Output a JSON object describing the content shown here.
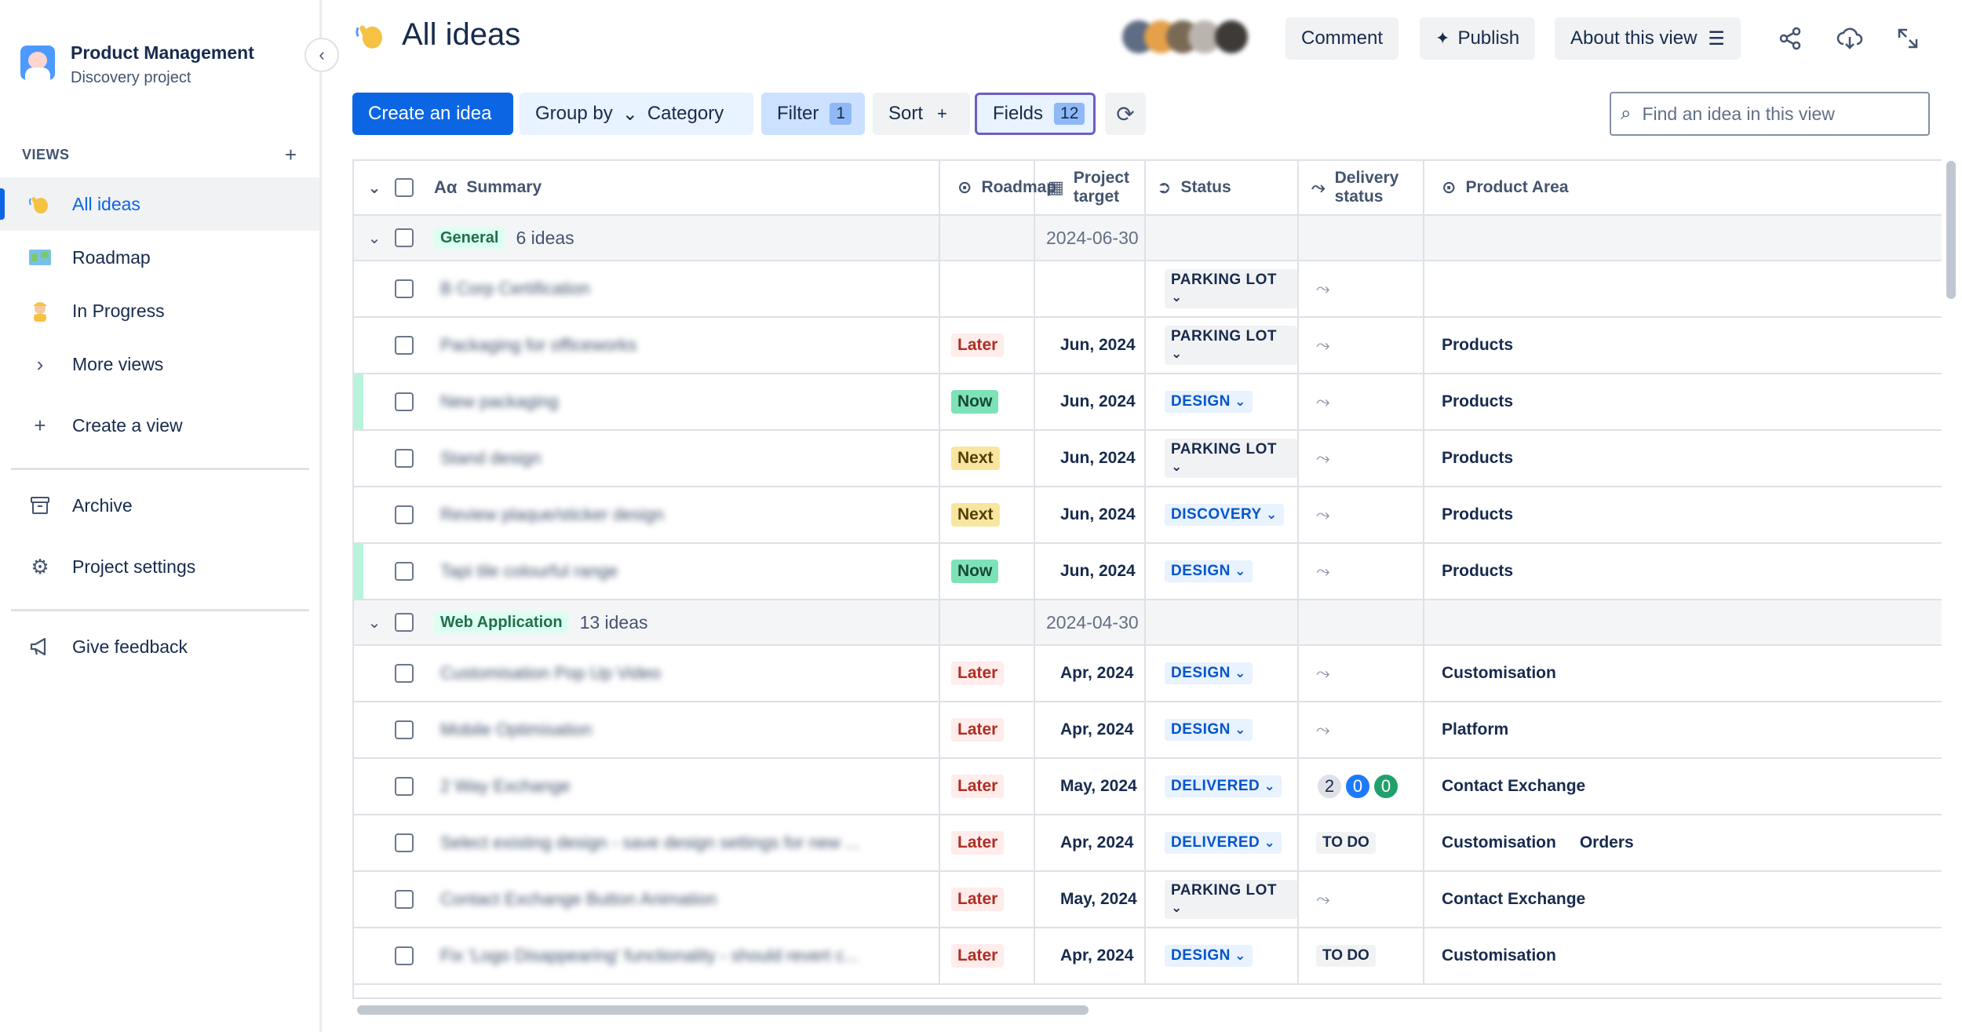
{
  "sidebar": {
    "project_name": "Product Management",
    "project_type": "Discovery project",
    "views_heading": "VIEWS",
    "items": [
      {
        "label": "All ideas",
        "icon": "waving-hand-icon"
      },
      {
        "label": "Roadmap",
        "icon": "map-icon"
      },
      {
        "label": "In Progress",
        "icon": "worker-icon"
      },
      {
        "label": "More views",
        "icon": "chevron-right-icon"
      },
      {
        "label": "Create a view",
        "icon": "plus-icon"
      },
      {
        "label": "Archive",
        "icon": "archive-icon"
      },
      {
        "label": "Project settings",
        "icon": "gear-icon"
      },
      {
        "label": "Give feedback",
        "icon": "megaphone-icon"
      }
    ]
  },
  "header": {
    "title": "All ideas",
    "comment_label": "Comment",
    "publish_label": "Publish",
    "about_label": "About this view"
  },
  "toolbar": {
    "create_label": "Create an idea",
    "group_by_label": "Group by",
    "group_by_value": "Category",
    "filter_label": "Filter",
    "filter_count": "1",
    "sort_label": "Sort",
    "fields_label": "Fields",
    "fields_count": "12"
  },
  "search": {
    "placeholder": "Find an idea in this view"
  },
  "table": {
    "columns": [
      "Summary",
      "Roadmap",
      "Project target",
      "Status",
      "Delivery status",
      "Product Area"
    ],
    "groups": [
      {
        "label": "General",
        "count": "6 ideas",
        "range": "2024-06-30 - ...",
        "rows": [
          {
            "summary": "B Corp Certification",
            "roadmap": "",
            "target": "",
            "status": "PARKING LOT",
            "delivery": "",
            "areas": [
              ""
            ],
            "accent": false
          },
          {
            "summary": "Packaging for officeworks",
            "roadmap": "Later",
            "target": "Jun, 2024",
            "status": "PARKING LOT",
            "delivery": "",
            "areas": [
              "Products"
            ],
            "accent": false
          },
          {
            "summary": "New packaging",
            "roadmap": "Now",
            "target": "Jun, 2024",
            "status": "DESIGN",
            "delivery": "",
            "areas": [
              "Products"
            ],
            "accent": true
          },
          {
            "summary": "Stand design",
            "roadmap": "Next",
            "target": "Jun, 2024",
            "status": "PARKING LOT",
            "delivery": "",
            "areas": [
              "Products"
            ],
            "accent": false
          },
          {
            "summary": "Review plaque/sticker design",
            "roadmap": "Next",
            "target": "Jun, 2024",
            "status": "DISCOVERY",
            "delivery": "",
            "areas": [
              "Products"
            ],
            "accent": false
          },
          {
            "summary": "Tapi tile colourful range",
            "roadmap": "Now",
            "target": "Jun, 2024",
            "status": "DESIGN",
            "delivery": "",
            "areas": [
              "Products"
            ],
            "accent": true
          }
        ]
      },
      {
        "label": "Web Application",
        "count": "13 ideas",
        "range": "2024-04-30 - ...",
        "rows": [
          {
            "summary": "Customisation Pop Up Video",
            "roadmap": "Later",
            "target": "Apr, 2024",
            "status": "DESIGN",
            "delivery": "",
            "areas": [
              "Customisation"
            ],
            "accent": false
          },
          {
            "summary": "Mobile Optimisation",
            "roadmap": "Later",
            "target": "Apr, 2024",
            "status": "DESIGN",
            "delivery": "",
            "areas": [
              "Platform"
            ],
            "accent": false
          },
          {
            "summary": "2 Way Exchange",
            "roadmap": "Later",
            "target": "May, 2024",
            "status": "DELIVERED",
            "delivery": "dots",
            "areas": [
              "Contact Exchange"
            ],
            "accent": false
          },
          {
            "summary": "Select existing design - save design settings for new ...",
            "roadmap": "Later",
            "target": "Apr, 2024",
            "status": "DELIVERED",
            "delivery": "TO DO",
            "areas": [
              "Customisation",
              "Orders"
            ],
            "accent": false
          },
          {
            "summary": "Contact Exchange Button Animation",
            "roadmap": "Later",
            "target": "May, 2024",
            "status": "PARKING LOT",
            "delivery": "",
            "areas": [
              "Contact Exchange"
            ],
            "accent": false
          },
          {
            "summary": "Fix 'Logo Disappearing' functionality - should revert c...",
            "roadmap": "Later",
            "target": "Apr, 2024",
            "status": "DESIGN",
            "delivery": "TO DO",
            "areas": [
              "Customisation"
            ],
            "accent": false
          }
        ]
      }
    ],
    "delivery_counts": [
      "2",
      "0",
      "0"
    ]
  },
  "colors": {
    "accent": "#0c66e4",
    "later": "#ae2e24",
    "now": "#7ee2b8",
    "next": "#f8e6a0",
    "status_blue": "#0055cc"
  }
}
